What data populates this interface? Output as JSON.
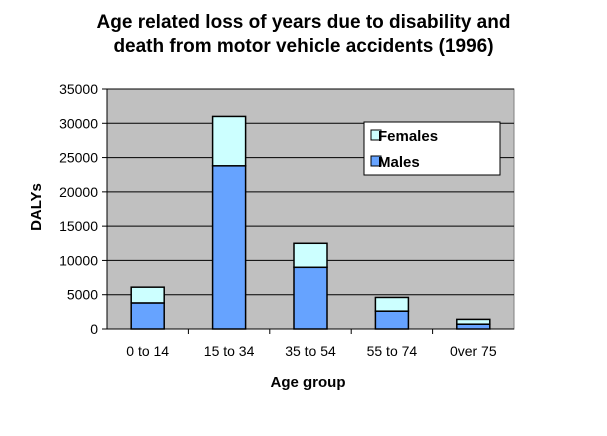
{
  "chart_data": {
    "type": "bar",
    "stacked": true,
    "title_lines": [
      "Age related loss of years due to disability and",
      "death from motor vehicle accidents (1996)"
    ],
    "xlabel": "Age group",
    "ylabel": "DALYs",
    "categories": [
      "0 to 14",
      "15 to 34",
      "35 to 54",
      "55 to 74",
      "0ver 75"
    ],
    "series": [
      {
        "name": "Males",
        "values": [
          3800,
          23800,
          9000,
          2600,
          700
        ]
      },
      {
        "name": "Females",
        "values": [
          2300,
          7200,
          3500,
          2000,
          700
        ]
      }
    ],
    "ylim": [
      0,
      35000
    ],
    "yticks": [
      0,
      5000,
      10000,
      15000,
      20000,
      25000,
      30000,
      35000
    ],
    "grid": true,
    "legend_position": "top-right",
    "colors": {
      "plot_background": "#c0c0c0",
      "Males": "#66a3ff",
      "Females": "#ccffff",
      "gridline": "#000000"
    }
  }
}
